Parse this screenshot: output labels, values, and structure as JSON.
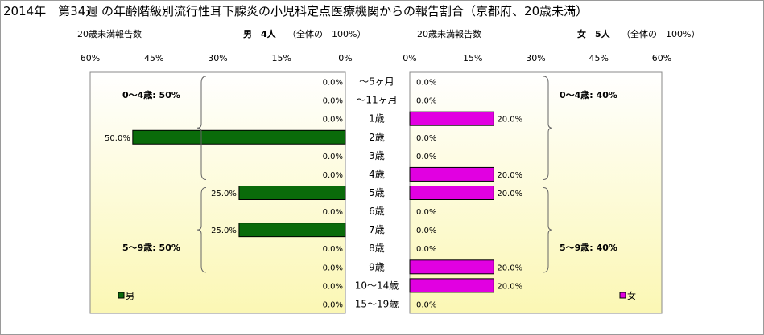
{
  "title": "2014年　第34週 の年齢階級別流行性耳下腺炎の小児科定点医療機関からの報告割合（京都府、20歳未満）",
  "male_header": {
    "caption": "20歳未満報告数",
    "count": "男　4人",
    "total": "（全体の　100%）"
  },
  "female_header": {
    "caption": "20歳未満報告数",
    "count": "女　5人",
    "total": "（全体の　100%）"
  },
  "colors": {
    "male_bar": "#0a6b0a",
    "female_bar": "#e100e1",
    "plot_bg_top": "#ffffff",
    "plot_bg_bottom": "#fbf7b4"
  },
  "chart_data": {
    "type": "bar",
    "orientation": "horizontal",
    "layout": "population-pyramid",
    "categories": [
      "～5ヶ月",
      "～11ヶ月",
      "1歳",
      "2歳",
      "3歳",
      "4歳",
      "5歳",
      "6歳",
      "7歳",
      "8歳",
      "9歳",
      "10～14歳",
      "15～19歳"
    ],
    "xlim": [
      0,
      60
    ],
    "ticks": [
      "0%",
      "15%",
      "30%",
      "45%",
      "60%"
    ],
    "tick_values": [
      0,
      15,
      30,
      45,
      60
    ],
    "grid": false,
    "series": [
      {
        "name": "男",
        "side": "left",
        "values": [
          0,
          0,
          0,
          50,
          0,
          0,
          25,
          0,
          25,
          0,
          0,
          0,
          0
        ],
        "labels": [
          "0.0%",
          "0.0%",
          "0.0%",
          "50.0%",
          "0.0%",
          "0.0%",
          "25.0%",
          "0.0%",
          "25.0%",
          "0.0%",
          "0.0%",
          "0.0%",
          "0.0%"
        ]
      },
      {
        "name": "女",
        "side": "right",
        "values": [
          0,
          0,
          20,
          0,
          0,
          20,
          20,
          0,
          0,
          0,
          20,
          20,
          0
        ],
        "labels": [
          "0.0%",
          "0.0%",
          "20.0%",
          "0.0%",
          "0.0%",
          "20.0%",
          "20.0%",
          "0.0%",
          "0.0%",
          "0.0%",
          "20.0%",
          "20.0%",
          "0.0%"
        ]
      }
    ],
    "annotations": {
      "male_0_4": "0～4歳: 50%",
      "male_5_9": "5～9歳: 50%",
      "female_0_4": "0～4歳: 40%",
      "female_5_9": "5～9歳: 40%"
    },
    "legend": {
      "male": "男",
      "female": "女",
      "placement": "bottom"
    }
  }
}
